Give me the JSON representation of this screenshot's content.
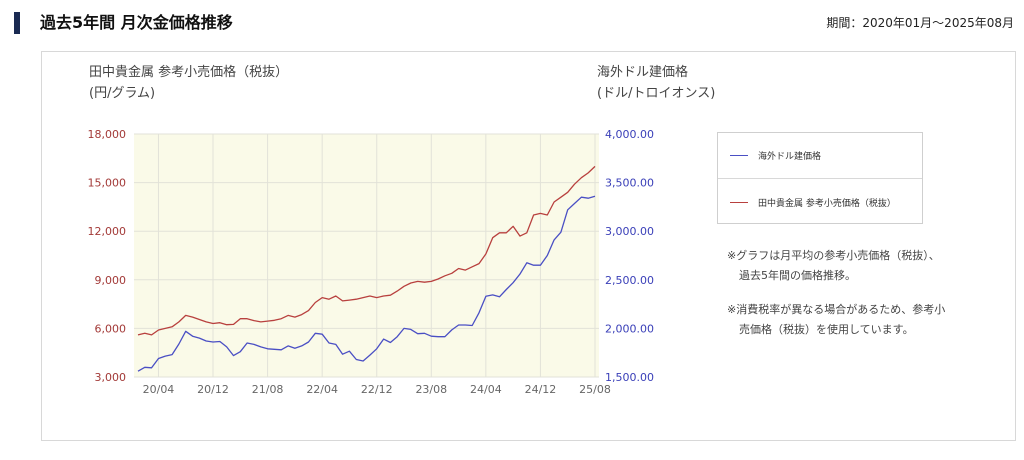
{
  "header": {
    "title": "過去5年間 月次金価格推移",
    "period": "期間：2020年01月〜2025年08月"
  },
  "axis_titles": {
    "left_line1": "田中貴金属 参考小売価格（税抜）",
    "left_line2": "(円/グラム)",
    "right_line1": "海外ドル建価格",
    "right_line2": "(ドル/トロイオンス)"
  },
  "legend": {
    "usd_label": "海外ドル建価格",
    "jpy_label": "田中貴金属 参考小売価格（税抜）"
  },
  "notes": {
    "note1_line1": "※グラフは月平均の参考小売価格（税抜）、",
    "note1_line2": "過去5年間の価格推移。",
    "note2_line1": "※消費税率が異なる場合があるため、参考小",
    "note2_line2": "売価格（税抜）を使用しています。"
  },
  "colors": {
    "usd": "#4a4fc4",
    "jpy": "#b8403e",
    "plot_bg": "#fafae8",
    "grid": "#e2e2d8"
  },
  "chart_data": {
    "type": "line",
    "x_tick_labels": [
      "20/04",
      "20/12",
      "21/08",
      "22/04",
      "22/12",
      "23/08",
      "24/04",
      "24/12",
      "25/08"
    ],
    "left_axis": {
      "ylim": [
        3000,
        18000
      ],
      "ticks": [
        "3,000",
        "6,000",
        "9,000",
        "12,000",
        "15,000",
        "18,000"
      ]
    },
    "right_axis": {
      "ylim": [
        1500,
        4000
      ],
      "ticks": [
        "1,500.00",
        "2,000.00",
        "2,500.00",
        "3,000.00",
        "3,500.00",
        "4,000.00"
      ]
    },
    "grid": true,
    "legend_position": "right",
    "series": [
      {
        "name": "海外ドル建価格",
        "axis": "right",
        "start": "2020-01",
        "values": [
          1560,
          1600,
          1595,
          1690,
          1715,
          1730,
          1840,
          1970,
          1920,
          1900,
          1870,
          1860,
          1865,
          1810,
          1720,
          1760,
          1850,
          1835,
          1810,
          1790,
          1785,
          1780,
          1820,
          1795,
          1820,
          1860,
          1950,
          1940,
          1850,
          1835,
          1735,
          1765,
          1680,
          1665,
          1725,
          1790,
          1890,
          1855,
          1915,
          2000,
          1990,
          1945,
          1950,
          1920,
          1915,
          1915,
          1985,
          2035,
          2035,
          2030,
          2160,
          2330,
          2345,
          2325,
          2400,
          2470,
          2560,
          2675,
          2650,
          2650,
          2750,
          2910,
          2990,
          3220,
          3285,
          3350,
          3340,
          3360
        ]
      },
      {
        "name": "田中貴金属 参考小売価格（税抜）",
        "axis": "left",
        "start": "2020-01",
        "values": [
          5600,
          5700,
          5600,
          5900,
          6000,
          6100,
          6400,
          6800,
          6700,
          6550,
          6400,
          6300,
          6350,
          6230,
          6250,
          6600,
          6600,
          6480,
          6400,
          6450,
          6500,
          6600,
          6800,
          6700,
          6850,
          7100,
          7600,
          7900,
          7800,
          8000,
          7700,
          7750,
          7800,
          7900,
          8000,
          7900,
          8000,
          8050,
          8300,
          8600,
          8800,
          8900,
          8850,
          8900,
          9050,
          9250,
          9400,
          9700,
          9600,
          9800,
          10000,
          10600,
          11600,
          11900,
          11900,
          12300,
          11700,
          11900,
          13000,
          13100,
          13000,
          13800,
          14100,
          14400,
          14900,
          15300,
          15600,
          16000
        ]
      }
    ]
  }
}
